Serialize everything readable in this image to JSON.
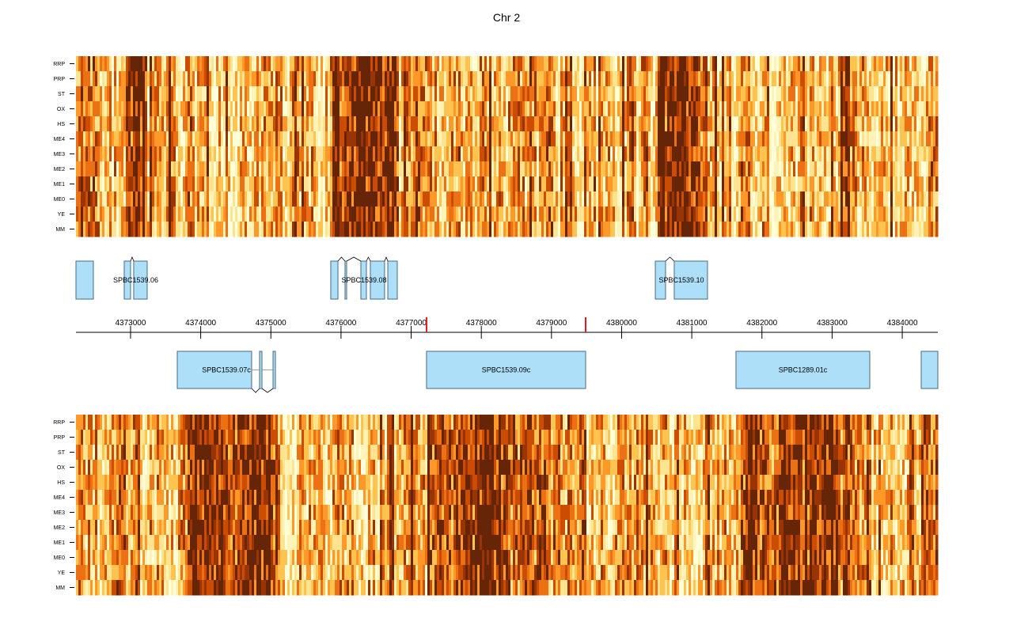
{
  "chart_data": {
    "type": "heatmap",
    "title": "Chr 2",
    "xlim": [
      4372222,
      4384507
    ],
    "x_ticks": [
      4373000,
      4374000,
      4375000,
      4376000,
      4377000,
      4378000,
      4379000,
      4380000,
      4381000,
      4382000,
      4383000,
      4384000
    ],
    "x_tick_labels": [
      "4373000",
      "4374000",
      "4375000",
      "4376000",
      "4377000",
      "4378000",
      "4379000",
      "4380000",
      "4381000",
      "4382000",
      "4383000",
      "4384000"
    ],
    "highlight_marks": [
      4377219,
      4379487
    ],
    "highlight_color": "#e41a1c",
    "row_labels": [
      "RRP",
      "PRP",
      "ST",
      "OX",
      "HS",
      "ME4",
      "ME3",
      "ME2",
      "ME1",
      "ME0",
      "YE",
      "MM"
    ],
    "tracks": [
      {
        "strand": "+",
        "position": "top"
      },
      {
        "strand": "-",
        "position": "bottom"
      }
    ],
    "color_scale": [
      "#ffffd9",
      "#fff3b8",
      "#fee391",
      "#fec44f",
      "#fe9929",
      "#ec7014",
      "#cc4c02",
      "#993404",
      "#662506"
    ],
    "gene_fill": "#addff9",
    "gene_stroke": "#4a6a80",
    "genes": [
      {
        "name": "",
        "strand": "+",
        "exons": [
          [
            4372222,
            4372470
          ]
        ]
      },
      {
        "name": "SPBC1539.06",
        "strand": "+",
        "exons": [
          [
            4372910,
            4373000
          ],
          [
            4373045,
            4373237
          ]
        ]
      },
      {
        "name": "SPBC1539.08",
        "strand": "+",
        "exons": [
          [
            4375854,
            4375956
          ],
          [
            4376057,
            4376080
          ],
          [
            4376283,
            4376362
          ],
          [
            4376418,
            4376621
          ],
          [
            4376667,
            4376802
          ]
        ]
      },
      {
        "name": "SPBC1539.10",
        "strand": "+",
        "exons": [
          [
            4380480,
            4380626
          ],
          [
            4380750,
            4381224
          ]
        ]
      },
      {
        "name": "SPBC1539.07c",
        "strand": "-",
        "exons": [
          [
            4373666,
            4374726
          ],
          [
            4374839,
            4374873
          ],
          [
            4375031,
            4375065
          ]
        ]
      },
      {
        "name": "SPBC1539.09c",
        "strand": "-",
        "exons": [
          [
            4377219,
            4379487
          ]
        ]
      },
      {
        "name": "SPBC1289.01c",
        "strand": "-",
        "exons": [
          [
            4381630,
            4383537
          ]
        ]
      },
      {
        "name": "",
        "strand": "-",
        "exons": [
          [
            4384270,
            4384507
          ]
        ]
      }
    ]
  }
}
